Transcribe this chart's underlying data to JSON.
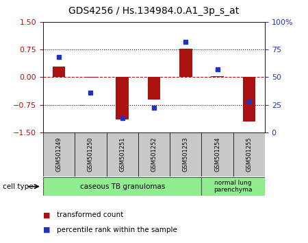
{
  "title": "GDS4256 / Hs.134984.0.A1_3p_s_at",
  "samples": [
    "GSM501249",
    "GSM501250",
    "GSM501251",
    "GSM501252",
    "GSM501253",
    "GSM501254",
    "GSM501255"
  ],
  "transformed_counts": [
    0.28,
    -0.02,
    -1.15,
    -0.6,
    0.77,
    0.03,
    -1.2
  ],
  "percentile_ranks": [
    68,
    36,
    13,
    22,
    82,
    57,
    28
  ],
  "ylim_left": [
    -1.5,
    1.5
  ],
  "ylim_right": [
    0,
    100
  ],
  "yticks_left": [
    -1.5,
    -0.75,
    0,
    0.75,
    1.5
  ],
  "yticks_right": [
    0,
    25,
    50,
    75,
    100
  ],
  "ytick_labels_right": [
    "0",
    "25",
    "50",
    "75",
    "100%"
  ],
  "hlines_dotted": [
    0.75,
    -0.75
  ],
  "hline_dashed": 0,
  "bar_color": "#AA1111",
  "dot_color": "#2233BB",
  "background_color": "#ffffff",
  "cell_type_1": "caseous TB granulomas",
  "cell_type_2": "normal lung\nparenchyma",
  "group_boundary": 5,
  "legend_bar": "transformed count",
  "legend_dot": "percentile rank within the sample",
  "cell_bg": "#90EE90",
  "sample_bg": "#C8C8C8"
}
